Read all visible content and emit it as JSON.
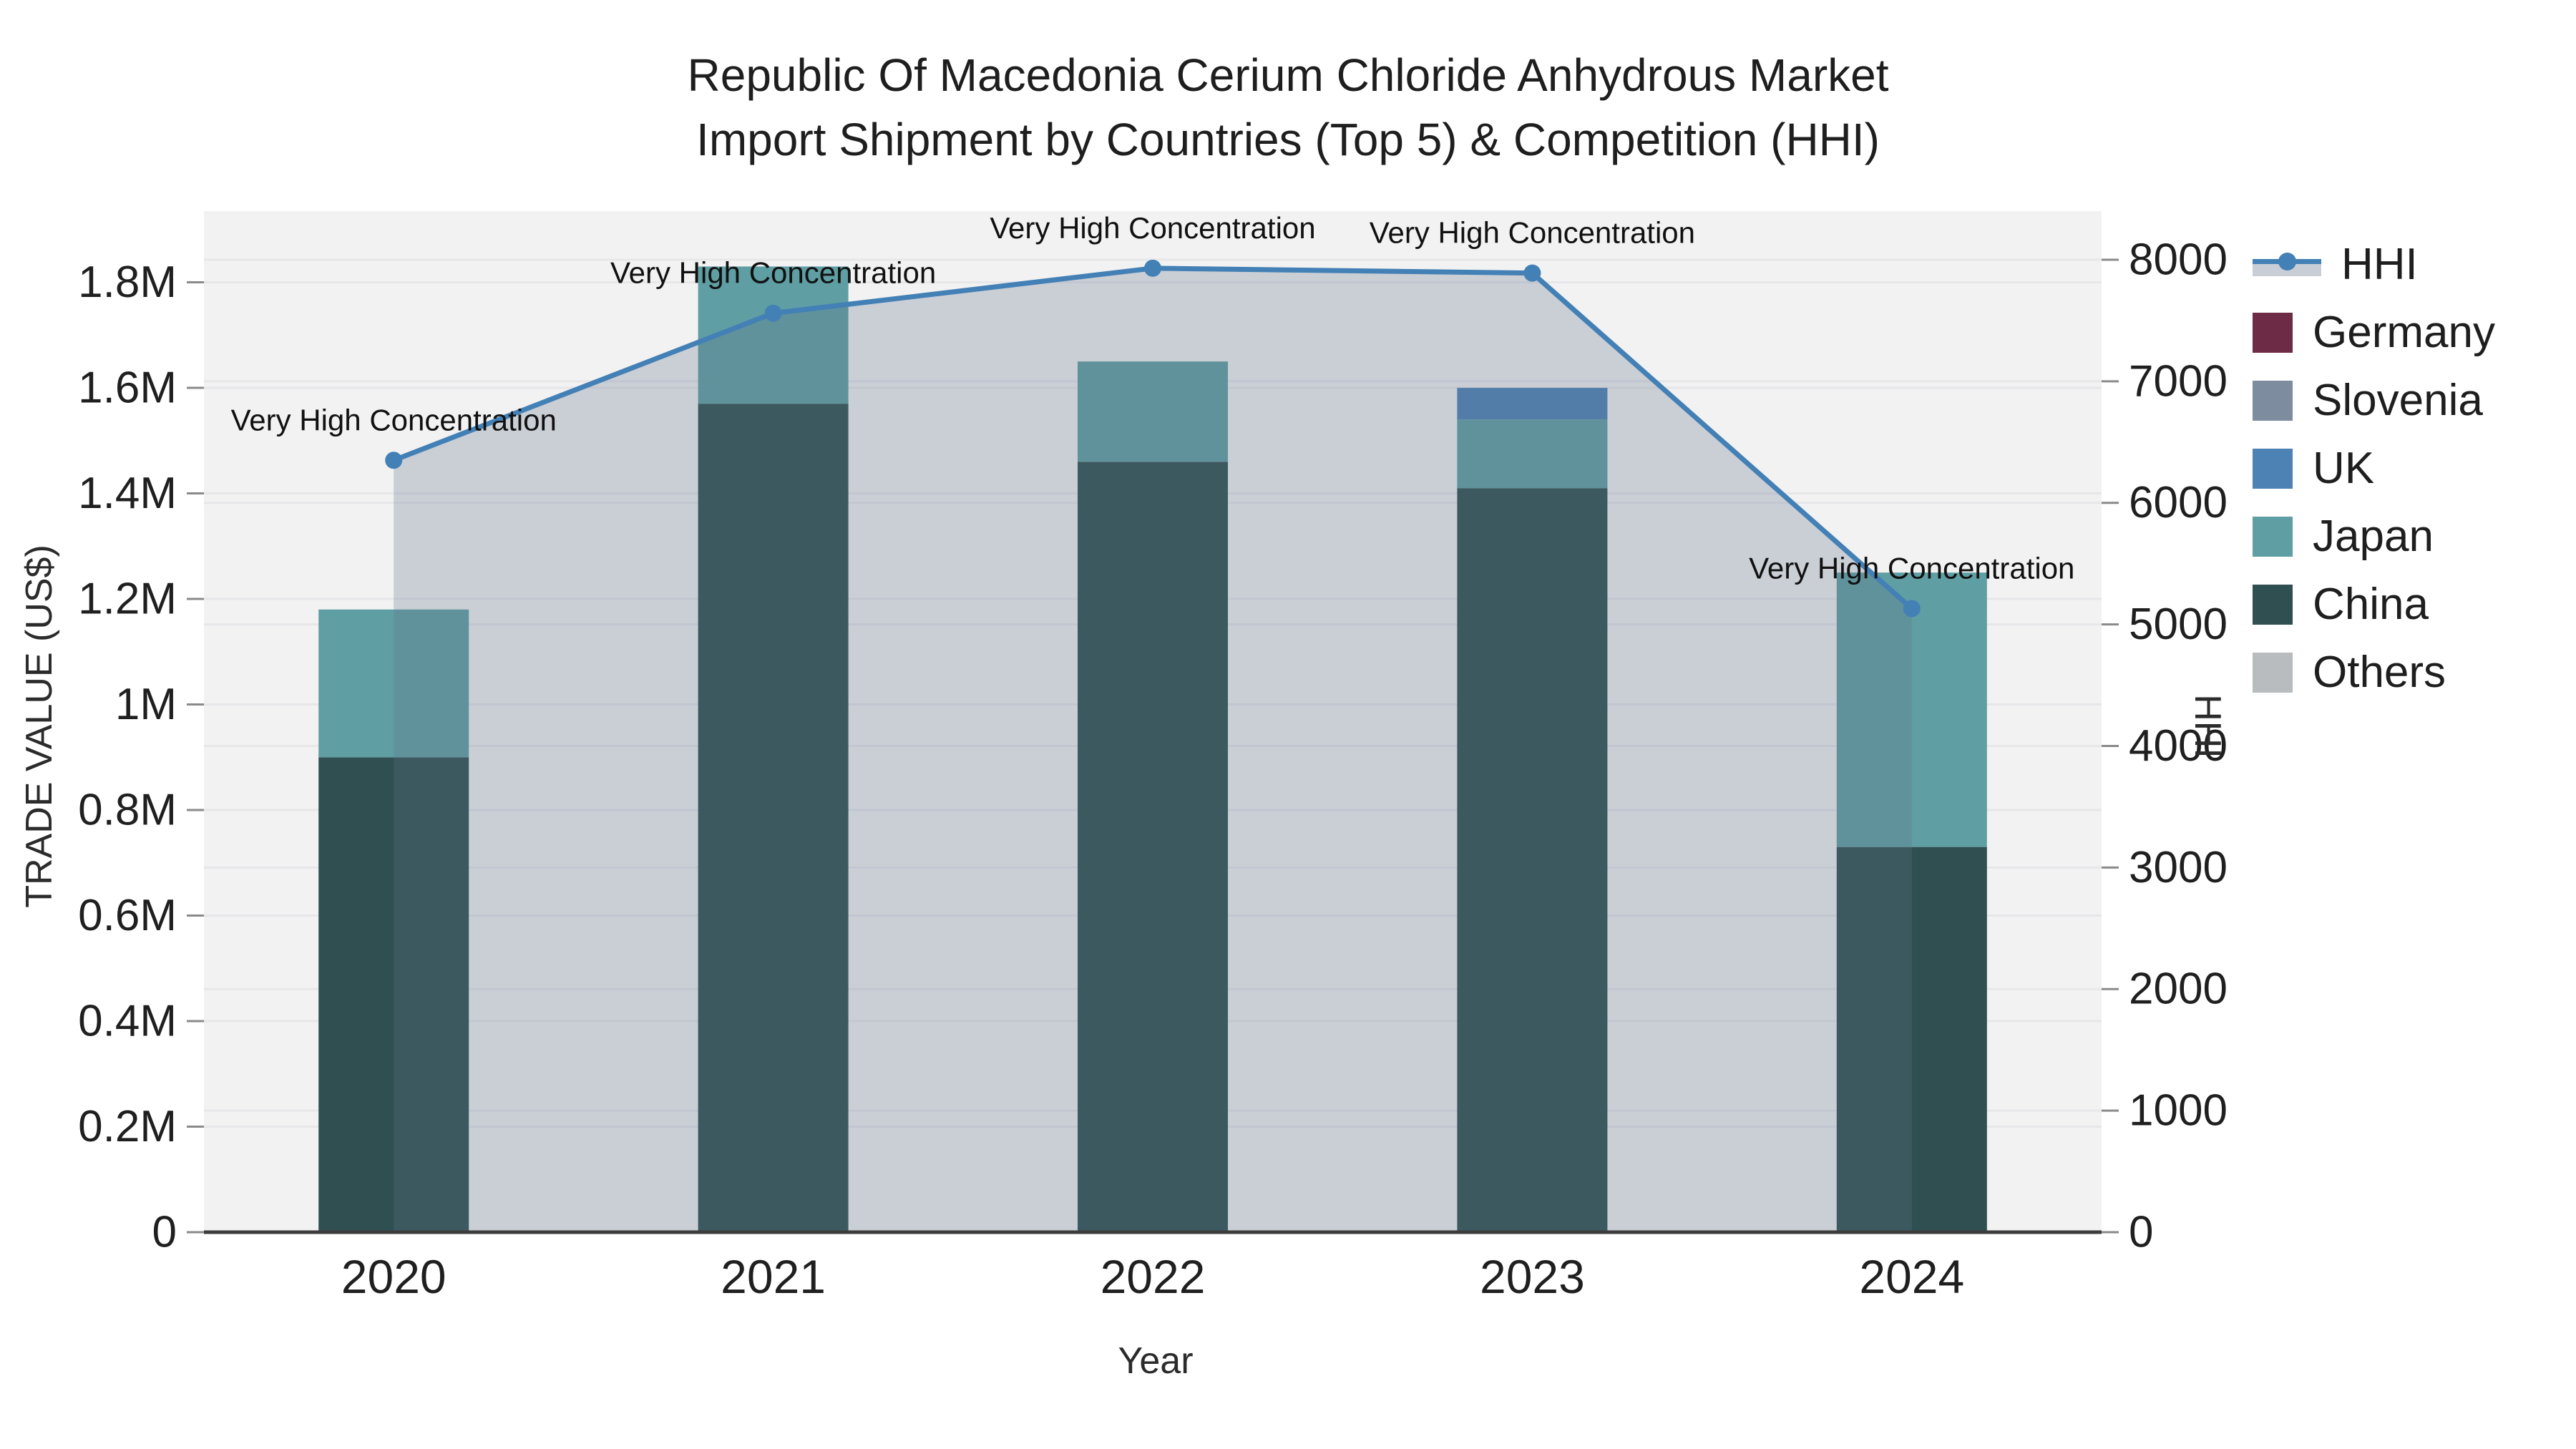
{
  "title": {
    "line1": "Republic Of Macedonia Cerium Chloride Anhydrous Market",
    "line2": "Import Shipment by Countries (Top 5) & Competition (HHI)"
  },
  "axes": {
    "y_left": {
      "title": "TRADE VALUE (US$)",
      "ticks": [
        {
          "value": 0,
          "label": "0"
        },
        {
          "value": 200000,
          "label": "0.2M"
        },
        {
          "value": 400000,
          "label": "0.4M"
        },
        {
          "value": 600000,
          "label": "0.6M"
        },
        {
          "value": 800000,
          "label": "0.8M"
        },
        {
          "value": 1000000,
          "label": "1M"
        },
        {
          "value": 1200000,
          "label": "1.2M"
        },
        {
          "value": 1400000,
          "label": "1.4M"
        },
        {
          "value": 1600000,
          "label": "1.6M"
        },
        {
          "value": 1800000,
          "label": "1.8M"
        }
      ]
    },
    "y_right": {
      "title": "HHI",
      "ticks": [
        {
          "value": 0,
          "label": "0"
        },
        {
          "value": 1000,
          "label": "1000"
        },
        {
          "value": 2000,
          "label": "2000"
        },
        {
          "value": 3000,
          "label": "3000"
        },
        {
          "value": 4000,
          "label": "4000"
        },
        {
          "value": 5000,
          "label": "5000"
        },
        {
          "value": 6000,
          "label": "6000"
        },
        {
          "value": 7000,
          "label": "7000"
        },
        {
          "value": 8000,
          "label": "8000"
        }
      ]
    },
    "x": {
      "title": "Year",
      "ticks": [
        "2020",
        "2021",
        "2022",
        "2023",
        "2024"
      ]
    }
  },
  "legend": [
    {
      "label": "HHI",
      "type": "line",
      "color": "#4380B5"
    },
    {
      "label": "Germany",
      "type": "swatch",
      "color": "#6E2B45"
    },
    {
      "label": "Slovenia",
      "type": "swatch",
      "color": "#7E8CA0"
    },
    {
      "label": "UK",
      "type": "swatch",
      "color": "#4D82B4"
    },
    {
      "label": "Japan",
      "type": "swatch",
      "color": "#5F9EA3"
    },
    {
      "label": "China",
      "type": "swatch",
      "color": "#2F4F50"
    },
    {
      "label": "Others",
      "type": "swatch",
      "color": "#B8BCBE"
    }
  ],
  "chart_data": {
    "type": "bar",
    "subtype": "stacked-bars-with-line",
    "categories": [
      "2020",
      "2021",
      "2022",
      "2023",
      "2024"
    ],
    "series": [
      {
        "name": "Germany",
        "type": "bar",
        "color": "#6E2B45",
        "values": [
          0,
          0,
          0,
          0,
          0
        ]
      },
      {
        "name": "Slovenia",
        "type": "bar",
        "color": "#7E8CA0",
        "values": [
          0,
          0,
          0,
          0,
          0
        ]
      },
      {
        "name": "UK",
        "type": "bar",
        "color": "#4D82B4",
        "values": [
          0,
          0,
          0,
          60000,
          0
        ]
      },
      {
        "name": "Japan",
        "type": "bar",
        "color": "#5F9EA3",
        "values": [
          280000,
          260000,
          190000,
          130000,
          520000
        ]
      },
      {
        "name": "China",
        "type": "bar",
        "color": "#2F4F50",
        "values": [
          900000,
          1570000,
          1460000,
          1410000,
          730000
        ]
      },
      {
        "name": "Others",
        "type": "bar",
        "color": "#B8BCBE",
        "values": [
          0,
          0,
          0,
          0,
          0
        ]
      }
    ],
    "stack_order": [
      "China",
      "Japan",
      "UK",
      "Slovenia",
      "Germany",
      "Others"
    ],
    "line_series": {
      "name": "HHI",
      "type": "line",
      "axis": "right",
      "color": "#4380B5",
      "fill_color": "rgba(100,115,140,0.28)",
      "values": [
        6350,
        7560,
        7930,
        7890,
        5130
      ]
    },
    "annotations": [
      {
        "x_index": 0,
        "text": "Very High Concentration"
      },
      {
        "x_index": 1,
        "text": "Very High Concentration"
      },
      {
        "x_index": 2,
        "text": "Very High Concentration"
      },
      {
        "x_index": 3,
        "text": "Very High Concentration"
      },
      {
        "x_index": 4,
        "text": "Very High Concentration"
      }
    ],
    "title": "Republic Of Macedonia Cerium Chloride Anhydrous Market Import Shipment by Countries (Top 5) & Competition (HHI)",
    "xlabel": "Year",
    "ylabel_left": "TRADE VALUE (US$)",
    "ylabel_right": "HHI",
    "ylim_left": [
      0,
      1935000
    ],
    "ylim_right": [
      0,
      8400
    ],
    "grid": true,
    "legend_position": "right",
    "plot_bg": "#F2F2F2",
    "grid_color": "#E7E7EA",
    "axis_line_color": "#3C3C3C"
  }
}
